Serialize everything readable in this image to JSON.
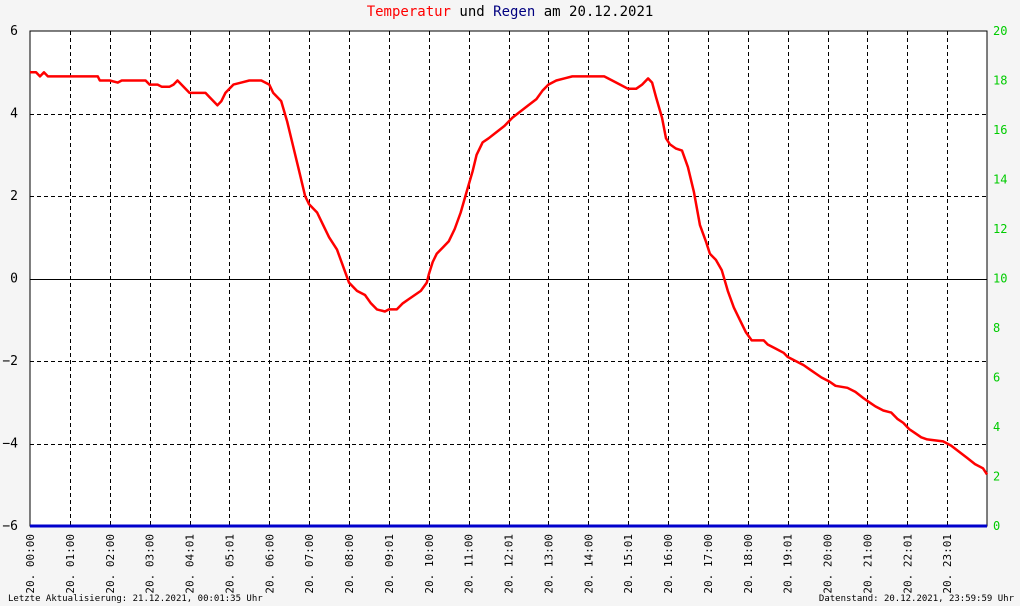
{
  "title": {
    "part1": "Temperatur",
    "part2": " und ",
    "part3": "Regen",
    "part4": " am 20.12.2021",
    "color1": "#ff0000",
    "color3": "#000080"
  },
  "footer": {
    "left": "Letzte Aktualisierung: 21.12.2021, 00:01:35 Uhr",
    "right": "Datenstand: 20.12.2021, 23:59:59 Uhr"
  },
  "chart_data": {
    "type": "line",
    "title": "Temperatur und Regen am 20.12.2021",
    "x_ticks": [
      "20. 00:00",
      "20. 01:00",
      "20. 02:00",
      "20. 03:00",
      "20. 04:01",
      "20. 05:01",
      "20. 06:00",
      "20. 07:00",
      "20. 08:00",
      "20. 09:01",
      "20. 10:00",
      "20. 11:00",
      "20. 12:01",
      "20. 13:00",
      "20. 14:00",
      "20. 15:01",
      "20. 16:00",
      "20. 17:00",
      "20. 18:00",
      "20. 19:01",
      "20. 20:00",
      "20. 21:00",
      "20. 22:01",
      "20. 23:01"
    ],
    "xlim_hours": [
      0,
      24
    ],
    "y_left": {
      "ticks": [
        -6,
        -4,
        -2,
        0,
        2,
        4,
        6
      ],
      "range": [
        -6,
        6
      ],
      "color": "#000000"
    },
    "y_right": {
      "ticks": [
        0,
        2,
        4,
        6,
        8,
        10,
        12,
        14,
        16,
        18,
        20
      ],
      "range": [
        0,
        20
      ],
      "color": "#00cc00"
    },
    "grid": true,
    "series": [
      {
        "name": "Temperatur",
        "color": "#ff0000",
        "axis": "left",
        "points": [
          [
            0.0,
            5.0
          ],
          [
            0.15,
            5.0
          ],
          [
            0.25,
            4.9
          ],
          [
            0.35,
            5.0
          ],
          [
            0.45,
            4.9
          ],
          [
            0.6,
            4.9
          ],
          [
            1.0,
            4.9
          ],
          [
            1.7,
            4.9
          ],
          [
            1.75,
            4.8
          ],
          [
            2.0,
            4.8
          ],
          [
            2.2,
            4.75
          ],
          [
            2.3,
            4.8
          ],
          [
            2.9,
            4.8
          ],
          [
            3.0,
            4.7
          ],
          [
            3.2,
            4.7
          ],
          [
            3.3,
            4.65
          ],
          [
            3.5,
            4.65
          ],
          [
            3.6,
            4.7
          ],
          [
            3.7,
            4.8
          ],
          [
            3.8,
            4.7
          ],
          [
            4.0,
            4.5
          ],
          [
            4.1,
            4.5
          ],
          [
            4.4,
            4.5
          ],
          [
            4.5,
            4.4
          ],
          [
            4.7,
            4.2
          ],
          [
            4.8,
            4.3
          ],
          [
            4.9,
            4.5
          ],
          [
            5.0,
            4.6
          ],
          [
            5.1,
            4.7
          ],
          [
            5.3,
            4.75
          ],
          [
            5.5,
            4.8
          ],
          [
            5.8,
            4.8
          ],
          [
            6.0,
            4.7
          ],
          [
            6.1,
            4.5
          ],
          [
            6.3,
            4.3
          ],
          [
            6.45,
            3.8
          ],
          [
            6.6,
            3.2
          ],
          [
            6.75,
            2.6
          ],
          [
            6.9,
            2.0
          ],
          [
            7.0,
            1.8
          ],
          [
            7.2,
            1.6
          ],
          [
            7.35,
            1.3
          ],
          [
            7.5,
            1.0
          ],
          [
            7.7,
            0.7
          ],
          [
            7.85,
            0.3
          ],
          [
            8.0,
            -0.1
          ],
          [
            8.2,
            -0.3
          ],
          [
            8.4,
            -0.4
          ],
          [
            8.55,
            -0.6
          ],
          [
            8.7,
            -0.75
          ],
          [
            8.9,
            -0.8
          ],
          [
            9.0,
            -0.75
          ],
          [
            9.2,
            -0.75
          ],
          [
            9.35,
            -0.6
          ],
          [
            9.5,
            -0.5
          ],
          [
            9.65,
            -0.4
          ],
          [
            9.8,
            -0.3
          ],
          [
            9.95,
            -0.1
          ],
          [
            10.0,
            0.1
          ],
          [
            10.1,
            0.4
          ],
          [
            10.2,
            0.6
          ],
          [
            10.35,
            0.75
          ],
          [
            10.5,
            0.9
          ],
          [
            10.65,
            1.2
          ],
          [
            10.8,
            1.6
          ],
          [
            10.95,
            2.1
          ],
          [
            11.1,
            2.6
          ],
          [
            11.2,
            3.0
          ],
          [
            11.35,
            3.3
          ],
          [
            11.5,
            3.4
          ],
          [
            11.7,
            3.55
          ],
          [
            11.9,
            3.7
          ],
          [
            12.1,
            3.9
          ],
          [
            12.3,
            4.05
          ],
          [
            12.5,
            4.2
          ],
          [
            12.7,
            4.35
          ],
          [
            12.85,
            4.55
          ],
          [
            13.0,
            4.7
          ],
          [
            13.2,
            4.8
          ],
          [
            13.4,
            4.85
          ],
          [
            13.6,
            4.9
          ],
          [
            13.8,
            4.9
          ],
          [
            14.0,
            4.9
          ],
          [
            14.4,
            4.9
          ],
          [
            14.6,
            4.8
          ],
          [
            14.8,
            4.7
          ],
          [
            15.0,
            4.6
          ],
          [
            15.2,
            4.6
          ],
          [
            15.35,
            4.7
          ],
          [
            15.5,
            4.85
          ],
          [
            15.6,
            4.75
          ],
          [
            15.7,
            4.4
          ],
          [
            15.85,
            3.9
          ],
          [
            15.95,
            3.4
          ],
          [
            16.05,
            3.25
          ],
          [
            16.2,
            3.15
          ],
          [
            16.35,
            3.1
          ],
          [
            16.5,
            2.7
          ],
          [
            16.65,
            2.1
          ],
          [
            16.8,
            1.3
          ],
          [
            16.95,
            0.9
          ],
          [
            17.05,
            0.6
          ],
          [
            17.2,
            0.45
          ],
          [
            17.35,
            0.2
          ],
          [
            17.5,
            -0.3
          ],
          [
            17.65,
            -0.7
          ],
          [
            17.8,
            -1.0
          ],
          [
            17.95,
            -1.3
          ],
          [
            18.1,
            -1.5
          ],
          [
            18.4,
            -1.5
          ],
          [
            18.5,
            -1.6
          ],
          [
            18.7,
            -1.7
          ],
          [
            18.9,
            -1.8
          ],
          [
            19.0,
            -1.9
          ],
          [
            19.2,
            -2.0
          ],
          [
            19.4,
            -2.1
          ],
          [
            19.55,
            -2.2
          ],
          [
            19.7,
            -2.3
          ],
          [
            19.85,
            -2.4
          ],
          [
            20.05,
            -2.5
          ],
          [
            20.2,
            -2.6
          ],
          [
            20.5,
            -2.65
          ],
          [
            20.7,
            -2.75
          ],
          [
            20.9,
            -2.9
          ],
          [
            21.05,
            -3.0
          ],
          [
            21.2,
            -3.1
          ],
          [
            21.4,
            -3.2
          ],
          [
            21.6,
            -3.25
          ],
          [
            21.75,
            -3.4
          ],
          [
            21.9,
            -3.5
          ],
          [
            22.05,
            -3.65
          ],
          [
            22.2,
            -3.75
          ],
          [
            22.35,
            -3.85
          ],
          [
            22.5,
            -3.9
          ],
          [
            22.9,
            -3.95
          ],
          [
            23.1,
            -4.05
          ],
          [
            23.3,
            -4.2
          ],
          [
            23.5,
            -4.35
          ],
          [
            23.7,
            -4.5
          ],
          [
            23.9,
            -4.6
          ],
          [
            24.0,
            -4.75
          ]
        ]
      },
      {
        "name": "Regen",
        "color": "#0000cc",
        "axis": "right",
        "points": [
          [
            0,
            0
          ],
          [
            24,
            0
          ]
        ]
      }
    ]
  }
}
